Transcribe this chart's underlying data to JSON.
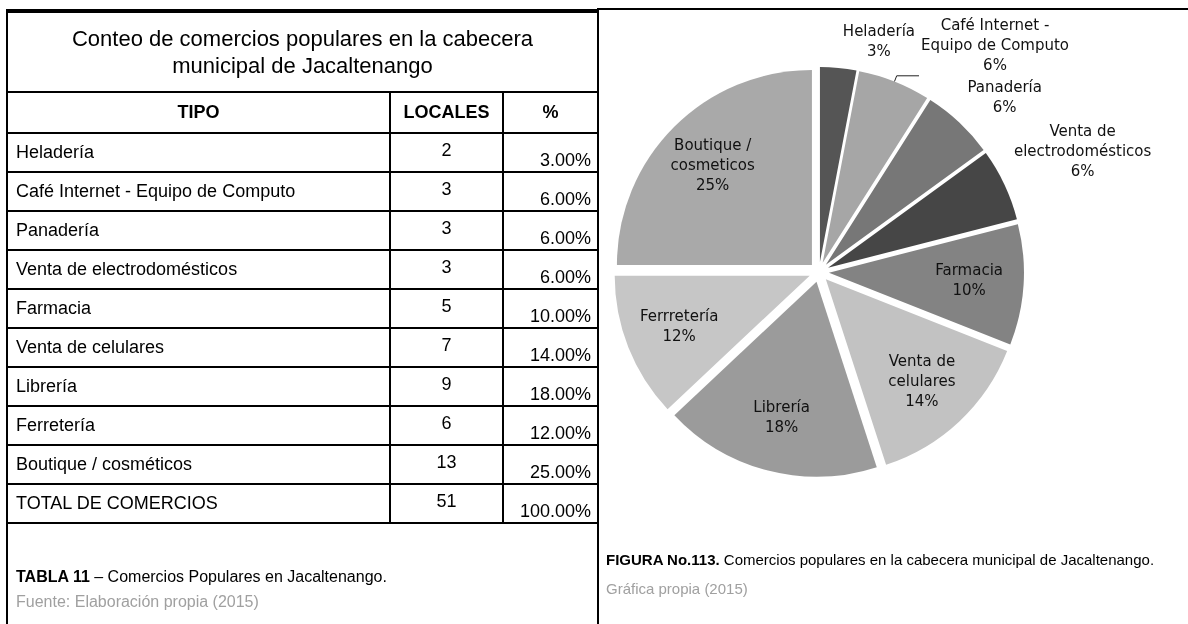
{
  "chart_data": [
    {
      "type": "other",
      "title": "Conteo de comercios populares en la cabecera municipal de Jacaltenango",
      "xlabel": "TIPO",
      "categories": [
        "Heladería",
        "Café Internet - Equipo de Computo",
        "Panadería",
        "Venta de electrodomésticos",
        "Farmacia",
        "Venta de celulares",
        "Librería",
        "Ferretería",
        "Boutique / cosméticos",
        "TOTAL DE COMERCIOS"
      ],
      "series": [
        {
          "name": "LOCALES",
          "values": [
            2,
            3,
            3,
            3,
            5,
            7,
            9,
            6,
            13,
            51
          ]
        },
        {
          "name": "%",
          "values": [
            3,
            6,
            6,
            6,
            10,
            14,
            18,
            12,
            25,
            100
          ],
          "value_labels": [
            "3.00%",
            "6.00%",
            "6.00%",
            "6.00%",
            "10.00%",
            "14.00%",
            "18.00%",
            "12.00%",
            "25.00%",
            "100.00%"
          ]
        }
      ],
      "data_labels": true,
      "annotations": [
        "TABLA 11",
        "– Comercios Populares en Jacaltenango.",
        "Fuente: Elaboración propia (2015)"
      ]
    },
    {
      "type": "pie",
      "categories": [
        "Heladería",
        "Café Internet - Equipo de Computo",
        "Panadería",
        "Venta de electrodomésticos",
        "Farmacia",
        "Venta de celulares",
        "Librería",
        "Ferrretería",
        "Boutique / cosmeticos"
      ],
      "values": [
        3,
        6,
        6,
        6,
        10,
        14,
        18,
        12,
        25
      ],
      "colors": [
        "#555555",
        "#a6a6a6",
        "#777777",
        "#464646",
        "#838383",
        "#c2c2c2",
        "#9b9b9b",
        "#c6c6c6",
        "#a9a9a9"
      ],
      "value_labels": [
        "3%",
        "6%",
        "6%",
        "6%",
        "10%",
        "14%",
        "18%",
        "12%",
        "25%"
      ],
      "annotations": [
        "FIGURA No.113.",
        "Comercios populares en la cabecera municipal de Jacaltenango.",
        "Gráfica propia (2015)"
      ]
    }
  ]
}
